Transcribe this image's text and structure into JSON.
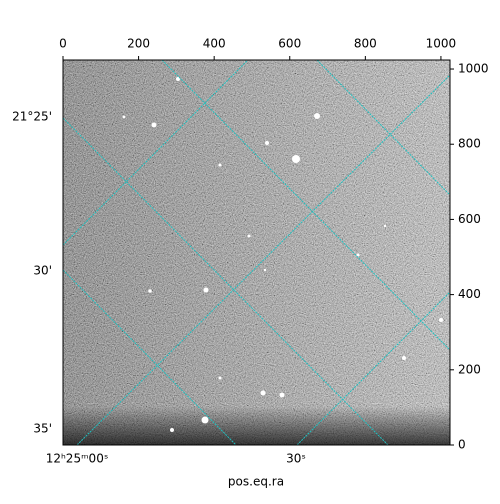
{
  "chart_data": {
    "type": "image",
    "xlabel": "pos.eq.ra",
    "xlim": [
      0,
      1024
    ],
    "xticks": [
      0,
      200,
      400,
      600,
      800,
      1000
    ],
    "ylim": [
      0,
      1024
    ],
    "yticks": [
      0,
      200,
      400,
      600,
      800,
      1000
    ],
    "dec_labels": [
      "21°25'",
      "30'",
      "35'"
    ],
    "ra_labels": [
      "12ʰ25ᵐ00ˢ",
      "30ˢ"
    ],
    "grid_color": "#20c0c0"
  }
}
